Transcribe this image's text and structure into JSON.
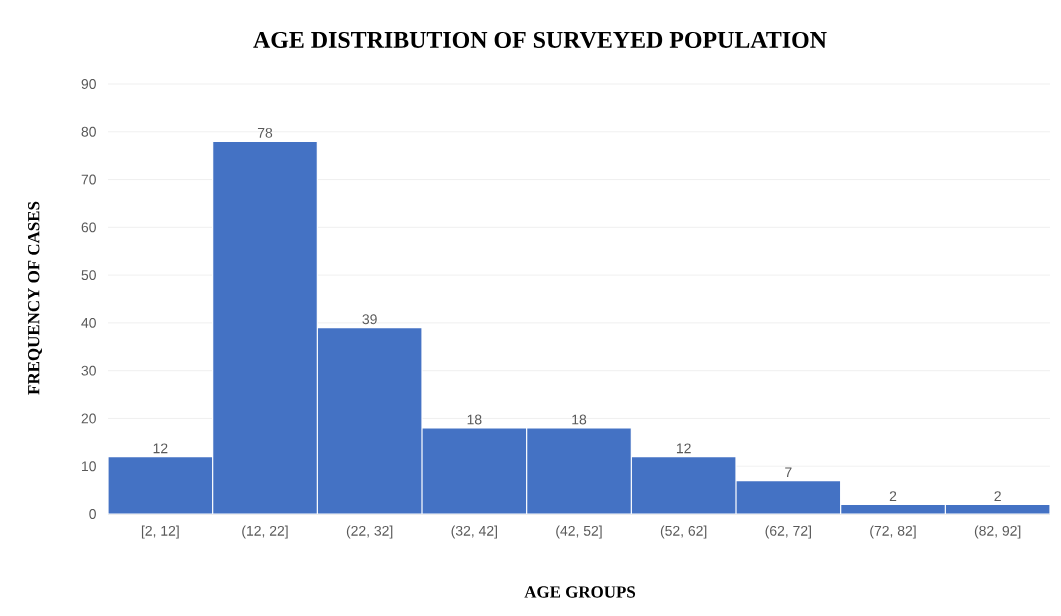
{
  "chart_data": {
    "type": "bar",
    "title": "AGE DISTRIBUTION OF SURVEYED POPULATION",
    "xlabel": "AGE GROUPS",
    "ylabel": "FREQUENCY OF CASES",
    "categories": [
      "[2, 12]",
      "(12, 22]",
      "(22, 32]",
      "(32, 42]",
      "(42, 52]",
      "(52, 62]",
      "(62, 72]",
      "(72, 82]",
      "(82, 92]"
    ],
    "values": [
      12,
      78,
      39,
      18,
      18,
      12,
      7,
      2,
      2
    ],
    "color": "#4472c4",
    "ylim": [
      0,
      90
    ],
    "yticks": [
      0,
      10,
      20,
      30,
      40,
      50,
      60,
      70,
      80,
      90
    ],
    "grid": "y",
    "data_labels": true
  }
}
